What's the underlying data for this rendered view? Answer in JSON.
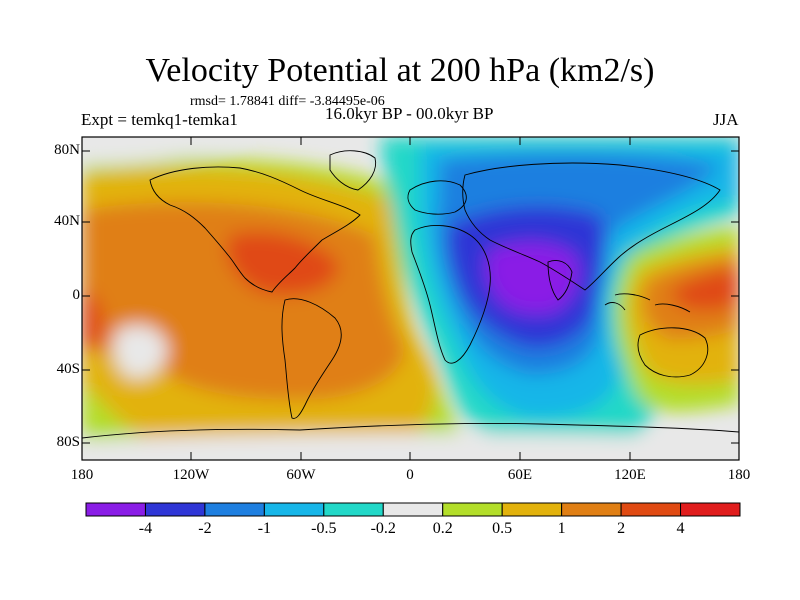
{
  "title": "Velocity Potential at 200 hPa (km2/s)",
  "stats_line": "rmsd= 1.78841 diff= -3.84495e-06",
  "experiment_label": "Expt = temkq1-temka1",
  "period_label": "16.0kyr BP - 00.0kyr BP",
  "season_label": "JJA",
  "lat_ticks": [
    "80N",
    "40N",
    "0",
    "40S",
    "80S"
  ],
  "lon_ticks": [
    "180",
    "120W",
    "60W",
    "0",
    "60E",
    "120E",
    "180"
  ],
  "colorbar": {
    "labels": [
      "-4",
      "-2",
      "-1",
      "-0.5",
      "-0.2",
      "0.2",
      "0.5",
      "1",
      "2",
      "4"
    ],
    "colors": [
      "#8a1de6",
      "#2f36d6",
      "#1e7fe0",
      "#17b6e8",
      "#22d8c8",
      "#e8e8e8",
      "#b3de2a",
      "#e2b20c",
      "#e07f14",
      "#e04a12",
      "#e01d1d"
    ]
  }
}
